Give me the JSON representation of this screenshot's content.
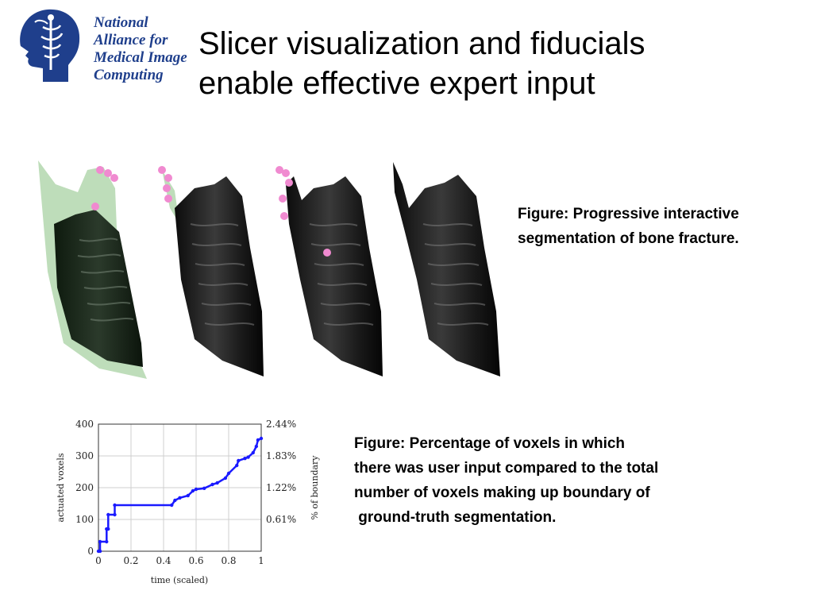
{
  "logo": {
    "lines": [
      "National",
      "Alliance for",
      "Medical Image",
      "Computing"
    ],
    "icon": "head-caduceus-icon",
    "color": "#1f3f8c"
  },
  "title": {
    "lines": [
      "Slicer visualization and fiducials",
      "enable effective expert input"
    ]
  },
  "figure1": {
    "caption_lines": [
      "Figure: Progressive interactive",
      "segmentation of bone fracture."
    ],
    "fiducial_color": "#f08ad0",
    "overlay_color": "#b7d9b3"
  },
  "figure2": {
    "caption_lines": [
      "Figure: Percentage of voxels in which",
      "there was user input compared to the total",
      "number of voxels making up boundary of",
      " ground-truth segmentation."
    ]
  },
  "chart_data": {
    "type": "line",
    "xlabel": "time (scaled)",
    "ylabel": "actuated voxels",
    "y2label": "% of boundary",
    "xlim": [
      0,
      1
    ],
    "ylim": [
      0,
      400
    ],
    "xticks": [
      "0",
      "0.2",
      "0.4",
      "0.6",
      "0.8",
      "1"
    ],
    "yticks": [
      "0",
      "100",
      "200",
      "300",
      "400"
    ],
    "y2ticks": [
      "0.61%",
      "1.22%",
      "1.83%",
      "2.44%"
    ],
    "grid": true,
    "line_color": "#1a1aff",
    "x": [
      0,
      0.01,
      0.01,
      0.05,
      0.05,
      0.06,
      0.06,
      0.1,
      0.1,
      0.45,
      0.47,
      0.5,
      0.55,
      0.58,
      0.6,
      0.65,
      0.7,
      0.73,
      0.78,
      0.8,
      0.85,
      0.86,
      0.9,
      0.92,
      0.95,
      0.97,
      0.98,
      1.0
    ],
    "y": [
      0,
      0,
      30,
      30,
      70,
      70,
      115,
      115,
      145,
      145,
      160,
      168,
      175,
      190,
      195,
      198,
      210,
      215,
      230,
      245,
      270,
      285,
      292,
      296,
      310,
      330,
      350,
      355
    ]
  }
}
